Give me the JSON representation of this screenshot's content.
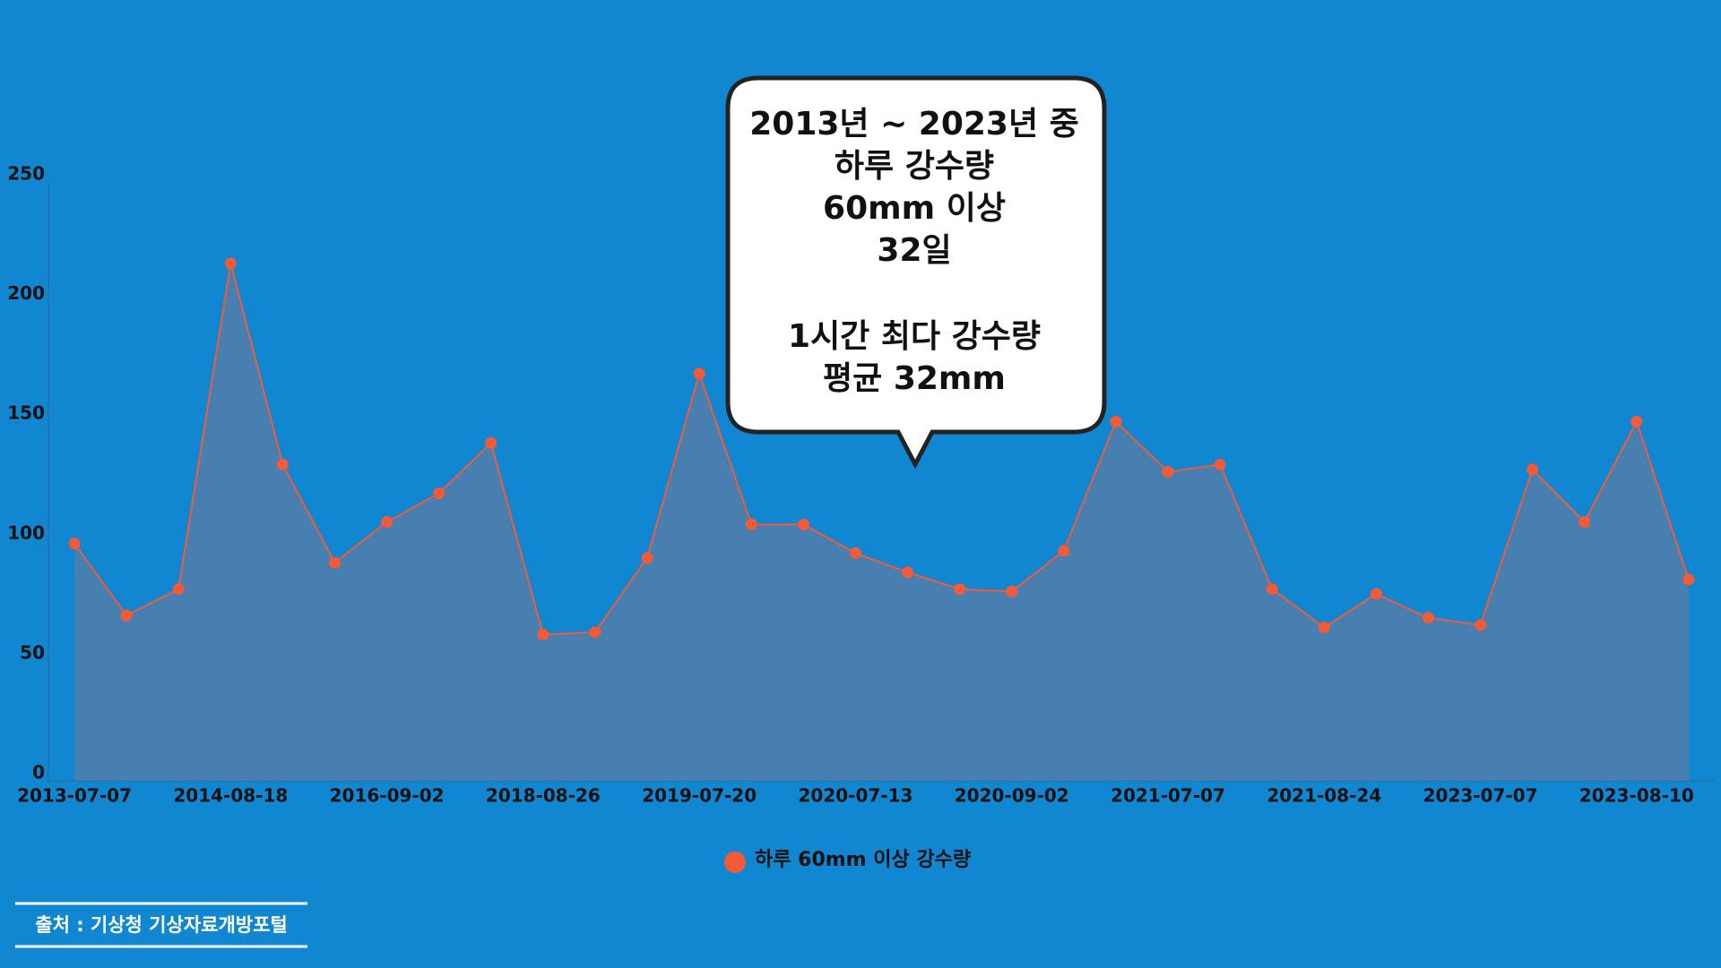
{
  "chart_data": {
    "type": "area",
    "categories": [
      "2013-07-07",
      null,
      null,
      "2014-08-18",
      null,
      null,
      "2016-09-02",
      null,
      null,
      "2018-08-26",
      null,
      null,
      "2019-07-20",
      null,
      null,
      "2020-07-13",
      null,
      null,
      "2020-09-02",
      null,
      null,
      "2021-07-07",
      null,
      null,
      "2021-08-24",
      null,
      null,
      "2023-07-07",
      null,
      null,
      "2023-08-10",
      null
    ],
    "series": [
      {
        "name": "하루 60mm 이상 강수량",
        "color": "#f25a38",
        "area_color": "#477fb1",
        "values": [
          99,
          69,
          80,
          216,
          132,
          91,
          108,
          120,
          141,
          61,
          62,
          93,
          170,
          107,
          107,
          95,
          87,
          80,
          79,
          96,
          150,
          129,
          132,
          80,
          64,
          78,
          68,
          65,
          130,
          108,
          150,
          84
        ]
      }
    ],
    "ylim": [
      0,
      250
    ],
    "yticks": [
      0,
      50,
      100,
      150,
      200,
      250
    ],
    "grid": false,
    "legend": "bottom",
    "annotation": {
      "lines": [
        "2013년 ~ 2023년 중",
        "하루 강수량",
        "60mm 이상",
        "32일"
      ],
      "lines2": [
        "1시간 최다 강수량",
        "평균 32mm"
      ]
    }
  },
  "source": "출처 : 기상청 기상자료개방포털"
}
